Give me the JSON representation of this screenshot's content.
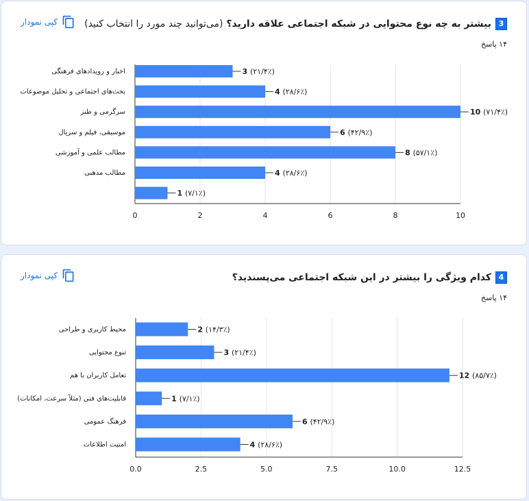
{
  "copy_label": "کپی نمودار",
  "questions": [
    {
      "number": "3",
      "title": "بیشتر به چه نوع محتوایی در شبکه اجتماعی علاقه دارید؟",
      "subtitle": "(می‌توانید چند مورد را انتخاب کنید)",
      "responses": "۱۴ پاسخ"
    },
    {
      "number": "4",
      "title": "کدام ویژگی را بیشتر در این شبکه اجتماعی می‌پسندید؟",
      "subtitle": "",
      "responses": "۱۴ پاسخ"
    }
  ],
  "colors": {
    "bar": "#4285f4",
    "accent": "#1a73e8"
  },
  "chart_data": [
    {
      "type": "bar",
      "orientation": "horizontal",
      "categories": [
        "اخبار و رویدادهای فرهنگی",
        "بحث‌های اجتماعی و تحلیل موضوعات",
        "سرگرمی و طنز",
        "موسیقی، فیلم و سریال",
        "مطالب علمی و آموزشی",
        "مطالب مذهبی",
        ""
      ],
      "values": [
        3,
        4,
        10,
        6,
        8,
        4,
        1
      ],
      "data_labels": [
        "(۲۱/۴٪)",
        "(۲۸/۶٪)",
        "(۷۱/۴٪)",
        "(۴۲/۹٪)",
        "(۵۷/۱٪)",
        "(۲۸/۶٪)",
        "(۷/۱٪)"
      ],
      "xlim": [
        0,
        10
      ],
      "xticks": [
        "0",
        "2",
        "4",
        "6",
        "8",
        "10"
      ],
      "xtick_values": [
        0,
        2,
        4,
        6,
        8,
        10
      ],
      "grid": true
    },
    {
      "type": "bar",
      "orientation": "horizontal",
      "categories": [
        "محیط کاربری و طراحی",
        "تنوع محتوایی",
        "تعامل کاربران با هم",
        "قابلیت‌های فنی (مثلاً سرعت، امکانات)",
        "فرهنگ عمومی",
        "امنیت اطلاعات"
      ],
      "values": [
        2,
        3,
        12,
        1,
        6,
        4
      ],
      "data_labels": [
        "(۱۴/۳٪)",
        "(۲۱/۴٪)",
        "(۸۵/۷٪)",
        "(۷/۱٪)",
        "(۴۲/۹٪)",
        "(۲۸/۶٪)"
      ],
      "xlim": [
        0,
        12.5
      ],
      "xticks": [
        "0.0",
        "2.5",
        "5.0",
        "7.5",
        "10.0",
        "12.5"
      ],
      "xtick_values": [
        0,
        2.5,
        5,
        7.5,
        10,
        12.5
      ],
      "grid": true
    }
  ]
}
